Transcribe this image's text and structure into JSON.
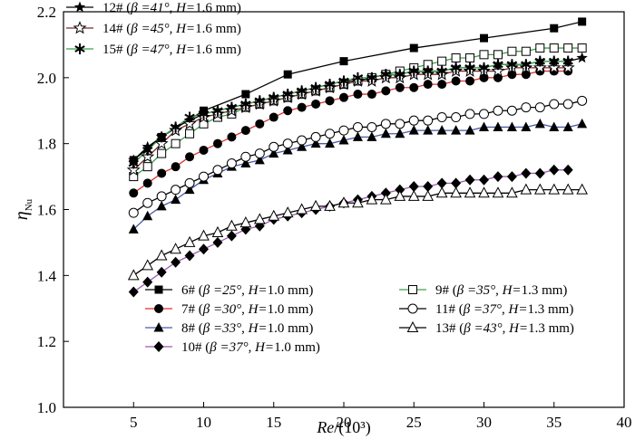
{
  "chart_data": {
    "type": "line",
    "xlabel": "Re/(10³)",
    "xlabel_italic": "Re",
    "xlabel_rest": "/(10³)",
    "ylabel": "ηNu",
    "ylabel_main": "η",
    "ylabel_sub": "Nu",
    "xlim": [
      0,
      40
    ],
    "ylim": [
      1.0,
      2.2
    ],
    "xticks": [
      5,
      10,
      15,
      20,
      25,
      30,
      35,
      40
    ],
    "xtick_labels": [
      "5",
      "10",
      "15",
      "20",
      "25",
      "30",
      "35",
      "40"
    ],
    "yticks": [
      1.0,
      1.2,
      1.4,
      1.6,
      1.8,
      2.0,
      2.2
    ],
    "ytick_labels": [
      "1.0",
      "1.2",
      "1.4",
      "1.6",
      "1.8",
      "2.0",
      "2.2"
    ],
    "series": [
      {
        "id": "6",
        "name": "6#",
        "label": "6#  (β =25°, H=1.0 mm)",
        "label_id": "6#",
        "label_beta": "β =25°",
        "label_h": "1.0 mm",
        "marker": "square-filled",
        "line_color": "#000000",
        "x": [
          5,
          7,
          10,
          13,
          16,
          20,
          25,
          30,
          35,
          37
        ],
        "y": [
          1.75,
          1.82,
          1.9,
          1.95,
          2.01,
          2.05,
          2.09,
          2.12,
          2.15,
          2.17
        ]
      },
      {
        "id": "7",
        "name": "7#",
        "label": "7#  (β =30°, H=1.0 mm)",
        "label_id": "7#",
        "label_beta": "β =30°",
        "label_h": "1.0 mm",
        "marker": "circle-filled",
        "line_color": "#e0312c",
        "x": [
          5,
          6,
          7,
          8,
          9,
          10,
          11,
          12,
          13,
          14,
          15,
          16,
          17,
          18,
          19,
          20,
          21,
          22,
          23,
          24,
          25,
          26,
          27,
          28,
          29,
          30,
          31,
          32,
          33,
          34,
          35,
          36
        ],
        "y": [
          1.65,
          1.68,
          1.71,
          1.73,
          1.76,
          1.78,
          1.8,
          1.82,
          1.84,
          1.86,
          1.88,
          1.9,
          1.91,
          1.92,
          1.93,
          1.94,
          1.95,
          1.95,
          1.96,
          1.97,
          1.97,
          1.98,
          1.98,
          1.99,
          1.99,
          2.0,
          2.0,
          2.01,
          2.01,
          2.02,
          2.02,
          2.02
        ]
      },
      {
        "id": "8",
        "name": "8#",
        "label": "8#  (β =33°, H=1.0 mm)",
        "label_id": "8#",
        "label_beta": "β =33°",
        "label_h": "1.0 mm",
        "marker": "triangle-filled",
        "line_color": "#4a5aa8",
        "x": [
          5,
          6,
          7,
          8,
          9,
          10,
          11,
          12,
          13,
          14,
          15,
          16,
          17,
          18,
          19,
          20,
          21,
          22,
          23,
          24,
          25,
          26,
          27,
          28,
          29,
          30,
          31,
          32,
          33,
          34,
          35,
          36,
          37
        ],
        "y": [
          1.54,
          1.58,
          1.61,
          1.63,
          1.66,
          1.69,
          1.71,
          1.73,
          1.74,
          1.75,
          1.77,
          1.78,
          1.79,
          1.8,
          1.8,
          1.81,
          1.82,
          1.82,
          1.83,
          1.83,
          1.84,
          1.84,
          1.84,
          1.84,
          1.84,
          1.85,
          1.85,
          1.85,
          1.85,
          1.86,
          1.85,
          1.85,
          1.86
        ]
      },
      {
        "id": "10",
        "name": "10#",
        "label": "10#  (β =37°, H=1.0 mm)",
        "label_id": "10#",
        "label_beta": "β =37°",
        "label_h": "1.0 mm",
        "marker": "diamond-filled",
        "line_color": "#9b5bb0",
        "x": [
          5,
          6,
          7,
          8,
          9,
          10,
          11,
          12,
          13,
          14,
          15,
          16,
          17,
          18,
          19,
          20,
          21,
          22,
          23,
          24,
          25,
          26,
          27,
          28,
          29,
          30,
          31,
          32,
          33,
          34,
          35,
          36
        ],
        "y": [
          1.35,
          1.38,
          1.41,
          1.44,
          1.46,
          1.48,
          1.5,
          1.52,
          1.54,
          1.55,
          1.57,
          1.58,
          1.59,
          1.6,
          1.61,
          1.62,
          1.63,
          1.64,
          1.65,
          1.66,
          1.67,
          1.67,
          1.68,
          1.68,
          1.69,
          1.69,
          1.7,
          1.7,
          1.71,
          1.71,
          1.72,
          1.72
        ]
      },
      {
        "id": "9",
        "name": "9#",
        "label": "9#  (β =35°, H=1.3 mm)",
        "label_id": "9#",
        "label_beta": "β =35°",
        "label_h": "1.3 mm",
        "marker": "square-open",
        "line_color": "#3aa24a",
        "x": [
          5,
          6,
          7,
          8,
          9,
          10,
          11,
          12,
          13,
          14,
          15,
          16,
          17,
          18,
          19,
          20,
          21,
          22,
          23,
          24,
          25,
          26,
          27,
          28,
          29,
          30,
          31,
          32,
          33,
          34,
          35,
          36,
          37
        ],
        "y": [
          1.7,
          1.73,
          1.77,
          1.8,
          1.83,
          1.86,
          1.88,
          1.89,
          1.91,
          1.92,
          1.93,
          1.94,
          1.95,
          1.96,
          1.97,
          1.98,
          1.99,
          2.0,
          2.01,
          2.02,
          2.03,
          2.04,
          2.05,
          2.06,
          2.06,
          2.07,
          2.07,
          2.08,
          2.08,
          2.09,
          2.09,
          2.09,
          2.09
        ]
      },
      {
        "id": "11",
        "name": "11#",
        "label": "11#  (β =37°, H=1.3 mm)",
        "label_id": "11#",
        "label_beta": "β =37°",
        "label_h": "1.3 mm",
        "marker": "circle-open",
        "line_color": "#000000",
        "x": [
          5,
          6,
          7,
          8,
          9,
          10,
          11,
          12,
          13,
          14,
          15,
          16,
          17,
          18,
          19,
          20,
          21,
          22,
          23,
          24,
          25,
          26,
          27,
          28,
          29,
          30,
          31,
          32,
          33,
          34,
          35,
          36,
          37
        ],
        "y": [
          1.59,
          1.62,
          1.64,
          1.66,
          1.68,
          1.7,
          1.72,
          1.74,
          1.76,
          1.77,
          1.79,
          1.8,
          1.81,
          1.82,
          1.83,
          1.84,
          1.85,
          1.85,
          1.86,
          1.86,
          1.87,
          1.87,
          1.88,
          1.88,
          1.89,
          1.89,
          1.9,
          1.9,
          1.91,
          1.91,
          1.92,
          1.92,
          1.93
        ]
      },
      {
        "id": "13",
        "name": "13#",
        "label": "13#  (β =43°, H=1.3 mm)",
        "label_id": "13#",
        "label_beta": "β =43°",
        "label_h": "1.3 mm",
        "marker": "triangle-open",
        "line_color": "#000000",
        "x": [
          5,
          6,
          7,
          8,
          9,
          10,
          11,
          12,
          13,
          14,
          15,
          16,
          17,
          18,
          19,
          20,
          21,
          22,
          23,
          24,
          25,
          26,
          27,
          28,
          29,
          30,
          31,
          32,
          33,
          34,
          35,
          36,
          37
        ],
        "y": [
          1.4,
          1.43,
          1.46,
          1.48,
          1.5,
          1.52,
          1.53,
          1.55,
          1.56,
          1.57,
          1.58,
          1.59,
          1.6,
          1.61,
          1.61,
          1.62,
          1.62,
          1.63,
          1.63,
          1.64,
          1.64,
          1.64,
          1.65,
          1.65,
          1.65,
          1.65,
          1.65,
          1.65,
          1.66,
          1.66,
          1.66,
          1.66,
          1.66
        ]
      },
      {
        "id": "12",
        "name": "12#",
        "label": "12#  (β =41°, H=1.6 mm)",
        "label_id": "12#",
        "label_beta": "β =41°",
        "label_h": "1.6 mm",
        "marker": "star-filled",
        "line_color": "#000000",
        "x": [
          5,
          6,
          7,
          8,
          9,
          10,
          11,
          12,
          13,
          14,
          15,
          16,
          17,
          18,
          19,
          20,
          21,
          22,
          23,
          24,
          25,
          26,
          27,
          28,
          29,
          30,
          31,
          32,
          33,
          34,
          35,
          36,
          37
        ],
        "y": [
          1.75,
          1.79,
          1.82,
          1.85,
          1.87,
          1.89,
          1.9,
          1.91,
          1.92,
          1.93,
          1.94,
          1.95,
          1.96,
          1.97,
          1.98,
          1.99,
          1.99,
          2.0,
          2.01,
          2.01,
          2.02,
          2.02,
          2.02,
          2.03,
          2.03,
          2.03,
          2.04,
          2.04,
          2.04,
          2.05,
          2.05,
          2.05,
          2.06
        ]
      },
      {
        "id": "14",
        "name": "14#",
        "label": "14#  (β =45°, H=1.6 mm)",
        "label_id": "14#",
        "label_beta": "β =45°",
        "label_h": "1.6 mm",
        "marker": "star-open",
        "line_color": "#7a2a2a",
        "x": [
          5,
          6,
          7,
          8,
          9,
          10,
          11,
          12,
          13,
          14,
          15,
          16,
          17,
          18,
          19,
          20,
          21,
          22,
          23,
          24,
          25,
          26,
          27,
          28,
          29,
          30,
          31,
          32,
          33,
          34,
          35,
          36
        ],
        "y": [
          1.72,
          1.76,
          1.8,
          1.84,
          1.86,
          1.88,
          1.89,
          1.9,
          1.91,
          1.92,
          1.93,
          1.94,
          1.95,
          1.96,
          1.97,
          1.98,
          1.99,
          1.99,
          2.0,
          2.0,
          2.01,
          2.01,
          2.01,
          2.02,
          2.02,
          2.02,
          2.02,
          2.03,
          2.03,
          2.03,
          2.03,
          2.03
        ]
      },
      {
        "id": "15",
        "name": "15#",
        "label": "15#  (β =47°, H=1.6 mm)",
        "label_id": "15#",
        "label_beta": "β =47°",
        "label_h": "1.6 mm",
        "marker": "asterisk",
        "line_color": "#3aa24a",
        "x": [
          5,
          6,
          7,
          8,
          9,
          10,
          11,
          12,
          13,
          14,
          15,
          16,
          17,
          18,
          19,
          20,
          21,
          22,
          23,
          24,
          25,
          26,
          27,
          28,
          29,
          30,
          31,
          32,
          33,
          34,
          35,
          36
        ],
        "y": [
          1.74,
          1.78,
          1.82,
          1.85,
          1.88,
          1.89,
          1.9,
          1.91,
          1.92,
          1.93,
          1.94,
          1.95,
          1.96,
          1.97,
          1.98,
          1.99,
          2.0,
          2.0,
          2.01,
          2.01,
          2.02,
          2.02,
          2.02,
          2.03,
          2.03,
          2.03,
          2.04,
          2.04,
          2.04,
          2.05,
          2.05,
          2.05
        ]
      }
    ],
    "legend_top": [
      "12",
      "14",
      "15"
    ],
    "legend_bottom_left": [
      "6",
      "7",
      "8",
      "10"
    ],
    "legend_bottom_right": [
      "9",
      "11",
      "13"
    ],
    "legend_h_prefix": "H=",
    "legend_separator": ", "
  }
}
